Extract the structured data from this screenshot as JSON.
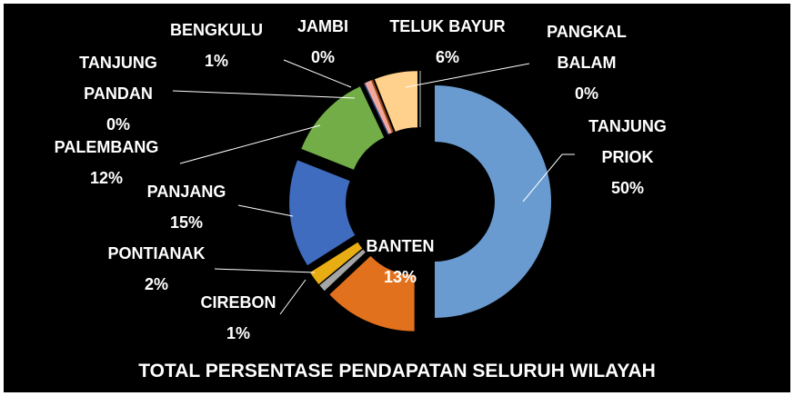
{
  "chart_data": {
    "type": "donut",
    "title": "TOTAL PERSENTASE PENDAPATAN SELURUH WILAYAH",
    "categories": [
      "TANJUNG PRIOK",
      "BANTEN",
      "CIREBON",
      "PONTIANAK",
      "PANJANG",
      "PALEMBANG",
      "TANJUNG PANDAN",
      "BENGKULU",
      "JAMBI",
      "TELUK BAYUR",
      "PANGKAL BALAM"
    ],
    "values": [
      50,
      13,
      1,
      2,
      15,
      12,
      0,
      1,
      0,
      6,
      0
    ],
    "value_labels": [
      "50%",
      "13%",
      "1%",
      "2%",
      "15%",
      "12%",
      "0%",
      "1%",
      "0%",
      "6%",
      "0%"
    ],
    "colors": [
      "#6a9bd0",
      "#e2711d",
      "#a5a5a5",
      "#e8ad12",
      "#3f6cbf",
      "#72ad47",
      "#264478",
      "#f2a79d",
      "#9e480e",
      "#ffd18c",
      "#636363"
    ]
  }
}
